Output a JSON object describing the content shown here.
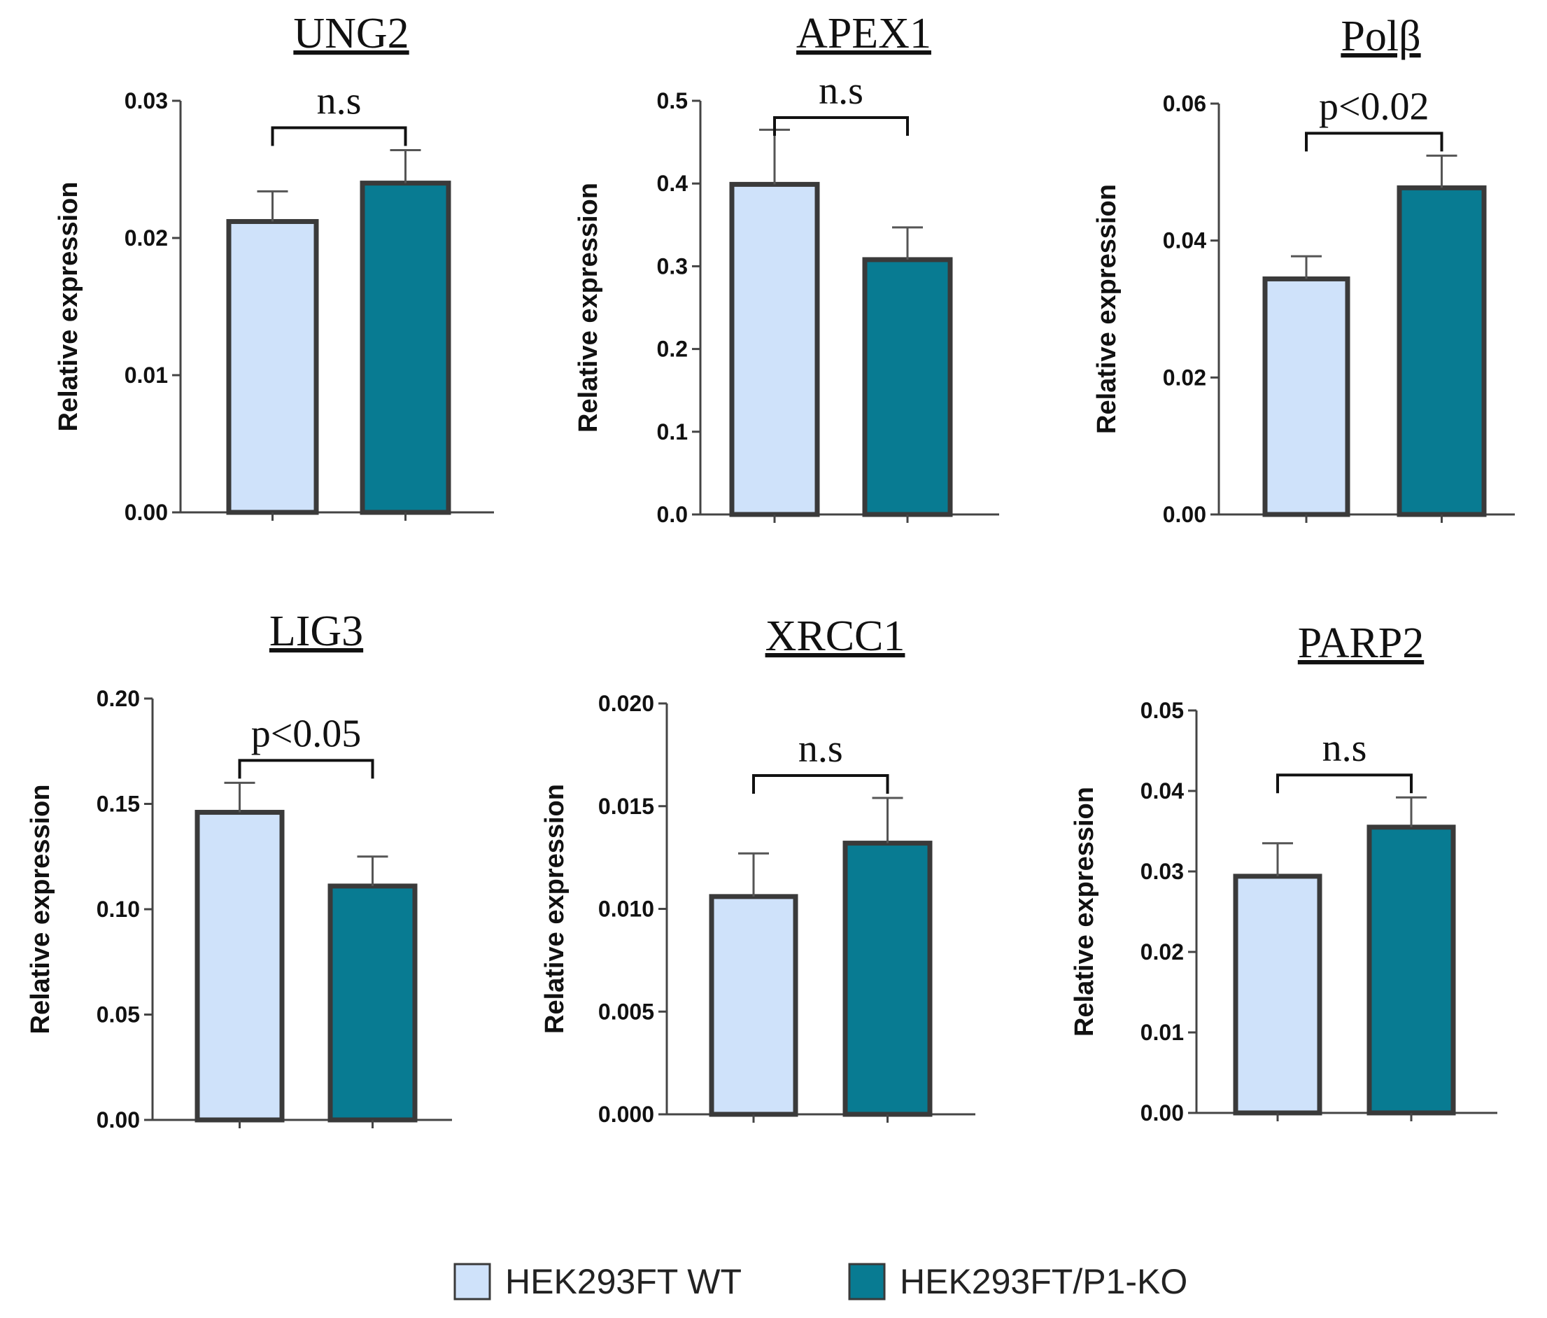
{
  "colors": {
    "wt_fill": "#cfe2fa",
    "ko_fill": "#087b92",
    "edge": "#3a3a3a",
    "error": "#555555",
    "axis": "#444444"
  },
  "legend": {
    "items": [
      {
        "label": "HEK293FT WT",
        "color": "#cfe2fa"
      },
      {
        "label": "HEK293FT/P1-KO",
        "color": "#087b92"
      }
    ]
  },
  "chart_data": [
    {
      "type": "bar",
      "title": "UNG2",
      "ylabel": "Relative expression",
      "categories": [
        "HEK293FT WT",
        "HEK293FT/P1-KO"
      ],
      "values": [
        0.0212,
        0.024
      ],
      "errors": [
        0.0022,
        0.0024
      ],
      "ylim": [
        0,
        0.03
      ],
      "yticks": [
        0,
        0.01,
        0.02,
        0.03
      ],
      "ytick_labels": [
        "0.00",
        "0.01",
        "0.02",
        "0.03"
      ],
      "significance": "n.s"
    },
    {
      "type": "bar",
      "title": "APEX1",
      "ylabel": "Relative expression",
      "categories": [
        "HEK293FT WT",
        "HEK293FT/P1-KO"
      ],
      "values": [
        0.399,
        0.308
      ],
      "errors": [
        0.066,
        0.039
      ],
      "ylim": [
        0,
        0.5
      ],
      "yticks": [
        0,
        0.1,
        0.2,
        0.3,
        0.4,
        0.5
      ],
      "ytick_labels": [
        "0.0",
        "0.1",
        "0.2",
        "0.3",
        "0.4",
        "0.5"
      ],
      "significance": "n.s"
    },
    {
      "type": "bar",
      "title": "Polβ",
      "ylabel": "Relative expression",
      "categories": [
        "HEK293FT WT",
        "HEK293FT/P1-KO"
      ],
      "values": [
        0.0344,
        0.0477
      ],
      "errors": [
        0.0033,
        0.0047
      ],
      "ylim": [
        0,
        0.06
      ],
      "yticks": [
        0,
        0.02,
        0.04,
        0.06
      ],
      "ytick_labels": [
        "0.00",
        "0.02",
        "0.04",
        "0.06"
      ],
      "significance": "p<0.02"
    },
    {
      "type": "bar",
      "title": "LIG3",
      "ylabel": "Relative expression",
      "categories": [
        "HEK293FT WT",
        "HEK293FT/P1-KO"
      ],
      "values": [
        0.146,
        0.111
      ],
      "errors": [
        0.014,
        0.014
      ],
      "ylim": [
        0,
        0.2
      ],
      "yticks": [
        0,
        0.05,
        0.1,
        0.15,
        0.2
      ],
      "ytick_labels": [
        "0.00",
        "0.05",
        "0.10",
        "0.15",
        "0.20"
      ],
      "significance": "p<0.05"
    },
    {
      "type": "bar",
      "title": "XRCC1",
      "ylabel": "Relative expression",
      "categories": [
        "HEK293FT WT",
        "HEK293FT/P1-KO"
      ],
      "values": [
        0.0106,
        0.0132
      ],
      "errors": [
        0.0021,
        0.0022
      ],
      "ylim": [
        0,
        0.02
      ],
      "yticks": [
        0,
        0.005,
        0.01,
        0.015,
        0.02
      ],
      "ytick_labels": [
        "0.000",
        "0.005",
        "0.010",
        "0.015",
        "0.020"
      ],
      "significance": "n.s"
    },
    {
      "type": "bar",
      "title": "PARP2",
      "ylabel": "Relative expression",
      "categories": [
        "HEK293FT WT",
        "HEK293FT/P1-KO"
      ],
      "values": [
        0.0294,
        0.0355
      ],
      "errors": [
        0.0041,
        0.0037
      ],
      "ylim": [
        0,
        0.05
      ],
      "yticks": [
        0,
        0.01,
        0.02,
        0.03,
        0.04,
        0.05
      ],
      "ytick_labels": [
        "0.00",
        "0.01",
        "0.02",
        "0.03",
        "0.04",
        "0.05"
      ],
      "significance": "n.s"
    }
  ]
}
